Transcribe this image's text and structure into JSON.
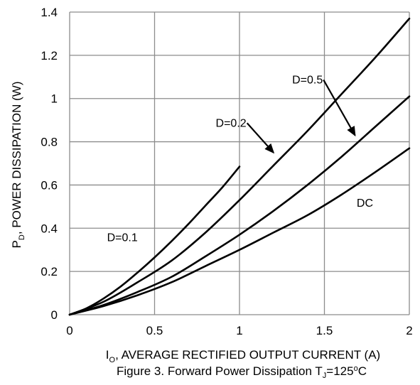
{
  "chart_data": {
    "type": "line",
    "caption_parts": [
      "Figure 3. Forward Power Dissipation T",
      "J",
      "=125",
      "o",
      "C"
    ],
    "xlabel_parts": [
      "I",
      "O",
      ", AVERAGE RECTIFIED OUTPUT CURRENT (A)"
    ],
    "ylabel_parts": [
      "P",
      "D",
      ", POWER DISSIPATION (W)"
    ],
    "xlim": [
      0,
      2
    ],
    "ylim": [
      0,
      1.4
    ],
    "xticks": [
      0,
      0.5,
      1,
      1.5,
      2
    ],
    "xtick_labels": [
      "0",
      "0.5",
      "1",
      "1.5",
      "2"
    ],
    "yticks": [
      0,
      0.2,
      0.4,
      0.6,
      0.8,
      1,
      1.2,
      1.4
    ],
    "ytick_labels": [
      "0",
      "0.2",
      "0.4",
      "0.6",
      "0.8",
      "1",
      "1.2",
      "1.4"
    ],
    "grid": true,
    "series": [
      {
        "name": "D=0.1",
        "x": [
          0,
          0.1,
          0.2,
          0.3,
          0.4,
          0.5,
          0.6,
          0.7,
          0.8,
          0.9,
          1.0
        ],
        "y": [
          0,
          0.03,
          0.075,
          0.13,
          0.195,
          0.265,
          0.34,
          0.42,
          0.505,
          0.59,
          0.685
        ]
      },
      {
        "name": "D=0.2",
        "x": [
          0,
          0.2,
          0.4,
          0.6,
          0.8,
          1.0,
          1.2,
          1.4,
          1.6,
          1.8,
          2.0
        ],
        "y": [
          0,
          0.06,
          0.15,
          0.25,
          0.38,
          0.53,
          0.69,
          0.85,
          1.02,
          1.19,
          1.37
        ]
      },
      {
        "name": "D=0.5",
        "x": [
          0,
          0.2,
          0.4,
          0.6,
          0.8,
          1.0,
          1.2,
          1.4,
          1.6,
          1.8,
          2.0
        ],
        "y": [
          0,
          0.045,
          0.105,
          0.175,
          0.27,
          0.37,
          0.48,
          0.6,
          0.73,
          0.87,
          1.01
        ]
      },
      {
        "name": "DC",
        "x": [
          0,
          0.2,
          0.4,
          0.6,
          0.8,
          1.0,
          1.2,
          1.4,
          1.6,
          1.8,
          2.0
        ],
        "y": [
          0,
          0.04,
          0.09,
          0.15,
          0.225,
          0.3,
          0.38,
          0.46,
          0.555,
          0.66,
          0.77
        ]
      }
    ],
    "annotations": [
      {
        "text": "D=0.1",
        "x": 0.22,
        "y": 0.34,
        "arrow": false
      },
      {
        "text": "D=0.2",
        "x": 0.86,
        "y": 0.87,
        "arrow": true,
        "arrow_to": [
          1.2,
          0.75
        ]
      },
      {
        "text": "D=0.5",
        "x": 1.31,
        "y": 1.07,
        "arrow": true,
        "arrow_to": [
          1.68,
          0.83
        ]
      },
      {
        "text": "DC",
        "x": 1.69,
        "y": 0.5,
        "arrow": false
      }
    ]
  }
}
